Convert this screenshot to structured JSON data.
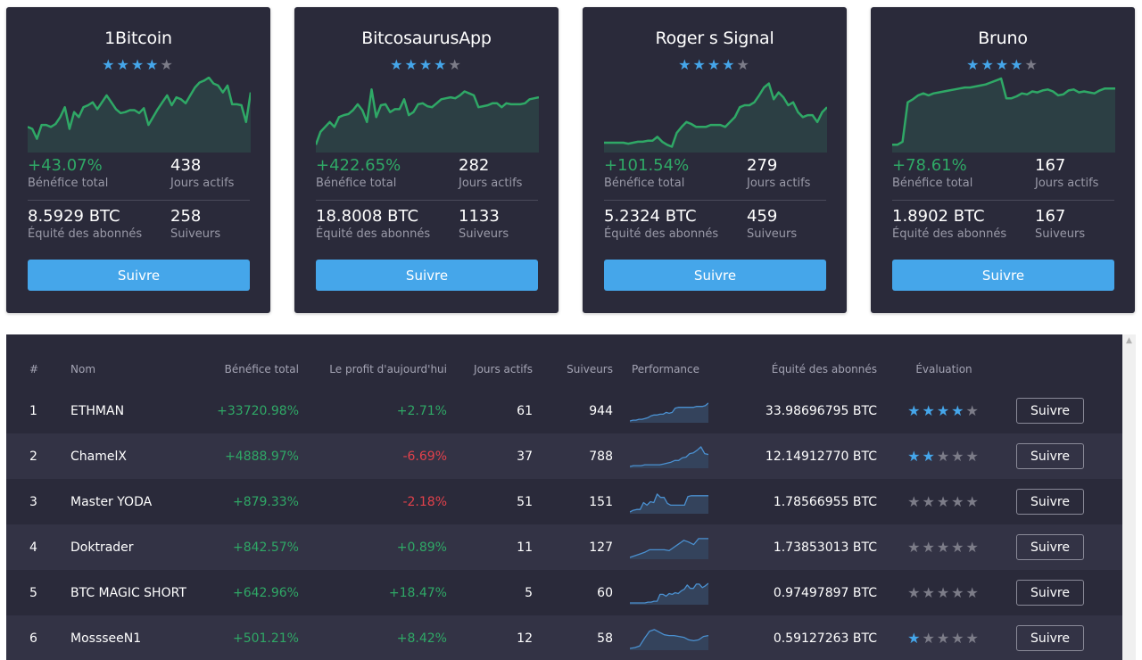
{
  "colors": {
    "card_bg": "#2a2a3a",
    "accent_blue": "#45a6ea",
    "positive_green": "#2fa866",
    "negative_red": "#e2414b",
    "star_off": "#7c7c88"
  },
  "cards": [
    {
      "name": "1Bitcoin",
      "rating": 4,
      "profit_total": "+43.07%",
      "profit_total_label": "Bénéfice total",
      "active_days": "438",
      "active_days_label": "Jours actifs",
      "equity": "8.5929 BTC",
      "equity_label": "Équité des abonnés",
      "followers": "258",
      "followers_label": "Suiveurs",
      "follow_label": "Suivre",
      "chart": [
        50,
        52,
        62,
        48,
        48,
        50,
        47,
        40,
        30,
        52,
        35,
        40,
        30,
        28,
        25,
        32,
        25,
        18,
        25,
        32,
        36,
        35,
        33,
        33,
        36,
        31,
        48,
        40,
        32,
        25,
        18,
        28,
        20,
        22,
        26,
        18,
        10,
        5,
        3,
        0,
        6,
        8,
        15,
        8,
        27,
        27,
        28,
        45,
        15
      ]
    },
    {
      "name": "BitcosaurusApp",
      "rating": 4,
      "profit_total": "+422.65%",
      "profit_total_label": "Bénéfice total",
      "active_days": "282",
      "active_days_label": "Jours actifs",
      "equity": "18.8008 BTC",
      "equity_label": "Équité des abonnés",
      "followers": "1133",
      "followers_label": "Suiveurs",
      "follow_label": "Suivre",
      "chart": [
        68,
        55,
        50,
        45,
        50,
        40,
        38,
        37,
        33,
        27,
        33,
        45,
        12,
        40,
        28,
        27,
        35,
        32,
        32,
        22,
        38,
        35,
        27,
        26,
        29,
        30,
        26,
        22,
        21,
        20,
        21,
        18,
        14,
        16,
        18,
        30,
        29,
        28,
        26,
        26,
        30,
        26,
        27,
        27,
        27,
        26,
        22,
        21,
        20
      ]
    },
    {
      "name": "Roger s Signal",
      "rating": 4,
      "profit_total": "+101.54%",
      "profit_total_label": "Bénéfice total",
      "active_days": "279",
      "active_days_label": "Jours actifs",
      "equity": "5.2324 BTC",
      "equity_label": "Équité des abonnés",
      "followers": "459",
      "followers_label": "Suiveurs",
      "follow_label": "Suivre",
      "chart": [
        66,
        66,
        66,
        66,
        66,
        67,
        66,
        65,
        65,
        64,
        64,
        60,
        65,
        68,
        70,
        56,
        50,
        45,
        47,
        50,
        50,
        50,
        48,
        48,
        48,
        50,
        45,
        40,
        30,
        28,
        28,
        25,
        18,
        10,
        6,
        22,
        15,
        20,
        28,
        25,
        35,
        40,
        38,
        38,
        45,
        35,
        30
      ]
    },
    {
      "name": "Bruno",
      "rating": 4,
      "profit_total": "+78.61%",
      "profit_total_label": "Bénéfice total",
      "active_days": "167",
      "active_days_label": "Jours actifs",
      "equity": "1.8902 BTC",
      "equity_label": "Équité des abonnés",
      "followers": "167",
      "followers_label": "Suiveurs",
      "follow_label": "Suivre",
      "chart": [
        68,
        68,
        65,
        25,
        22,
        18,
        16,
        18,
        16,
        15,
        14,
        13,
        12,
        11,
        10,
        10,
        9,
        8,
        7,
        5,
        3,
        1,
        21,
        21,
        19,
        16,
        17,
        14,
        15,
        13,
        12,
        14,
        18,
        17,
        13,
        12,
        15,
        14,
        15,
        16,
        13,
        11,
        11,
        11
      ]
    }
  ],
  "table": {
    "headers": {
      "rank": "#",
      "name": "Nom",
      "profit_total": "Bénéfice total",
      "profit_today": "Le profit d'aujourd'hui",
      "active_days": "Jours actifs",
      "followers": "Suiveurs",
      "performance": "Performance",
      "equity": "Équité des abonnés",
      "rating": "Évaluation"
    },
    "rows": [
      {
        "rank": "1",
        "name": "ETHMAN",
        "profit_total": "+33720.98%",
        "profit_today": "+2.71%",
        "today_sign": "pos",
        "active_days": "61",
        "followers": "944",
        "equity": "33.98696795 BTC",
        "rating": 4,
        "follow_label": "Suivre",
        "spark": [
          24,
          23,
          23,
          22,
          22,
          21,
          20,
          18,
          17,
          17,
          16,
          16,
          14,
          15,
          14,
          9,
          8,
          8,
          8,
          8,
          8,
          8,
          7,
          7,
          7,
          6,
          3
        ]
      },
      {
        "rank": "2",
        "name": "ChamelX",
        "profit_total": "+4888.97%",
        "profit_today": "-6.69%",
        "today_sign": "neg",
        "active_days": "37",
        "followers": "788",
        "equity": "12.14912770 BTC",
        "rating": 2,
        "follow_label": "Suivre",
        "spark": [
          24,
          23,
          23,
          23,
          22,
          22,
          22,
          22,
          22,
          21,
          20,
          19,
          17,
          17,
          14,
          13,
          9,
          8,
          5,
          1,
          9,
          10
        ]
      },
      {
        "rank": "3",
        "name": "Master YODA",
        "profit_total": "+879.33%",
        "profit_today": "-2.18%",
        "today_sign": "neg",
        "active_days": "51",
        "followers": "151",
        "equity": "1.78566955 BTC",
        "rating": 0,
        "follow_label": "Suivre",
        "spark": [
          24,
          22,
          21,
          21,
          13,
          16,
          12,
          13,
          3,
          7,
          7,
          14,
          16,
          16,
          16,
          16,
          16,
          6,
          5,
          5,
          5,
          5,
          5,
          5
        ]
      },
      {
        "rank": "4",
        "name": "Doktrader",
        "profit_total": "+842.57%",
        "profit_today": "+0.89%",
        "today_sign": "pos",
        "active_days": "11",
        "followers": "127",
        "equity": "1.73853013 BTC",
        "rating": 0,
        "follow_label": "Suivre",
        "spark": [
          24,
          22,
          20,
          18,
          15,
          15,
          15,
          15,
          16,
          12,
          8,
          4,
          6,
          9,
          2,
          2,
          2
        ]
      },
      {
        "rank": "5",
        "name": "BTC MAGIC SHORT",
        "profit_total": "+642.96%",
        "profit_today": "+18.47%",
        "today_sign": "pos",
        "active_days": "5",
        "followers": "60",
        "equity": "0.97497897 BTC",
        "rating": 0,
        "follow_label": "Suivre",
        "spark": [
          24,
          24,
          24,
          24,
          24,
          24,
          23,
          23,
          22,
          22,
          14,
          14,
          16,
          13,
          14,
          12,
          13,
          10,
          8,
          3,
          7,
          7,
          2,
          2,
          6,
          4,
          1
        ]
      },
      {
        "rank": "6",
        "name": "MossseeN1",
        "profit_total": "+501.21%",
        "profit_today": "+8.42%",
        "today_sign": "pos",
        "active_days": "12",
        "followers": "58",
        "equity": "0.59127263 BTC",
        "rating": 1,
        "follow_label": "Suivre",
        "spark": [
          24,
          23,
          21,
          12,
          4,
          2,
          5,
          8,
          9,
          9,
          10,
          11,
          14,
          15,
          14,
          10,
          9
        ]
      }
    ]
  },
  "scrollbar": {
    "up_icon": "▲"
  }
}
